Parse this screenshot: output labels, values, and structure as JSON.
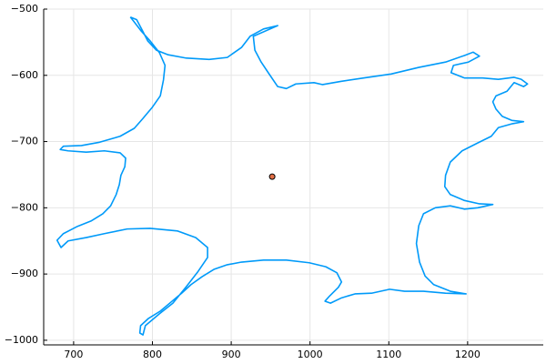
{
  "chart_data": {
    "type": "line",
    "xlim": [
      662,
      1296
    ],
    "ylim": [
      -1007,
      -500
    ],
    "xticks": [
      700,
      800,
      900,
      1000,
      1100,
      1200
    ],
    "yticks": [
      {
        "value": -500,
        "label": "−500"
      },
      {
        "value": -600,
        "label": "−600"
      },
      {
        "value": -700,
        "label": "−700"
      },
      {
        "value": -800,
        "label": "−800"
      },
      {
        "value": -900,
        "label": "−900"
      },
      {
        "value": -1000,
        "label": "−1000"
      }
    ],
    "grid": true,
    "series": [
      {
        "color": "#009af9",
        "x": [
          772,
          780,
          788,
          794,
          805,
          820,
          843,
          872,
          895,
          913,
          924,
          941,
          959,
          928,
          930,
          938,
          947,
          959,
          970,
          982,
          1005,
          1016,
          1040,
          1068,
          1103,
          1138,
          1172,
          1196,
          1207,
          1215,
          1201,
          1182,
          1179,
          1196,
          1219,
          1239,
          1259,
          1268,
          1276,
          1271,
          1259,
          1250,
          1236,
          1232,
          1236,
          1244,
          1256,
          1271,
          1257,
          1239,
          1230,
          1213,
          1193,
          1178,
          1172,
          1171,
          1178,
          1196,
          1215,
          1232,
          1213,
          1196,
          1178,
          1159,
          1144,
          1138,
          1135,
          1139,
          1146,
          1157,
          1178,
          1198,
          1172,
          1144,
          1120,
          1101,
          1078,
          1057,
          1040,
          1026,
          1019,
          1025,
          1036,
          1040,
          1034,
          1020,
          999,
          970,
          941,
          913,
          895,
          878,
          863,
          849,
          837,
          824,
          810,
          795,
          785,
          784,
          788,
          791,
          809,
          826,
          843,
          858,
          870,
          870,
          855,
          832,
          797,
          768,
          739,
          716,
          693,
          684,
          679,
          687,
          705,
          722,
          737,
          747,
          754,
          758,
          760,
          765,
          766,
          759,
          739,
          716,
          693,
          683,
          687,
          710,
          733,
          759,
          777,
          788,
          800,
          810,
          814,
          816,
          809,
          797,
          785,
          776,
          772
        ],
        "values": [
          -512,
          -516,
          -534,
          -548,
          -562,
          -569,
          -574,
          -576,
          -573,
          -558,
          -541,
          -530,
          -525,
          -541,
          -562,
          -580,
          -596,
          -617,
          -620,
          -613,
          -611,
          -614,
          -609,
          -604,
          -598,
          -588,
          -580,
          -570,
          -565,
          -571,
          -580,
          -585,
          -596,
          -604,
          -604,
          -606,
          -603,
          -606,
          -613,
          -617,
          -611,
          -624,
          -631,
          -640,
          -651,
          -662,
          -668,
          -670,
          -673,
          -679,
          -692,
          -702,
          -714,
          -731,
          -751,
          -768,
          -780,
          -789,
          -794,
          -795,
          -800,
          -802,
          -797,
          -800,
          -809,
          -827,
          -854,
          -882,
          -903,
          -916,
          -926,
          -930,
          -929,
          -926,
          -926,
          -923,
          -929,
          -930,
          -936,
          -944,
          -941,
          -933,
          -920,
          -912,
          -898,
          -889,
          -883,
          -879,
          -879,
          -882,
          -886,
          -893,
          -904,
          -916,
          -929,
          -942,
          -956,
          -967,
          -978,
          -989,
          -992,
          -978,
          -960,
          -944,
          -919,
          -896,
          -875,
          -860,
          -845,
          -835,
          -831,
          -832,
          -839,
          -845,
          -850,
          -860,
          -849,
          -839,
          -828,
          -820,
          -809,
          -797,
          -780,
          -765,
          -751,
          -738,
          -725,
          -717,
          -714,
          -716,
          -714,
          -712,
          -707,
          -706,
          -701,
          -692,
          -680,
          -665,
          -648,
          -631,
          -607,
          -585,
          -566,
          -548,
          -532,
          -518,
          -512
        ]
      },
      {
        "color": "#e26f46",
        "marker": "circle",
        "x": [
          952
        ],
        "values": [
          -753
        ]
      }
    ]
  }
}
